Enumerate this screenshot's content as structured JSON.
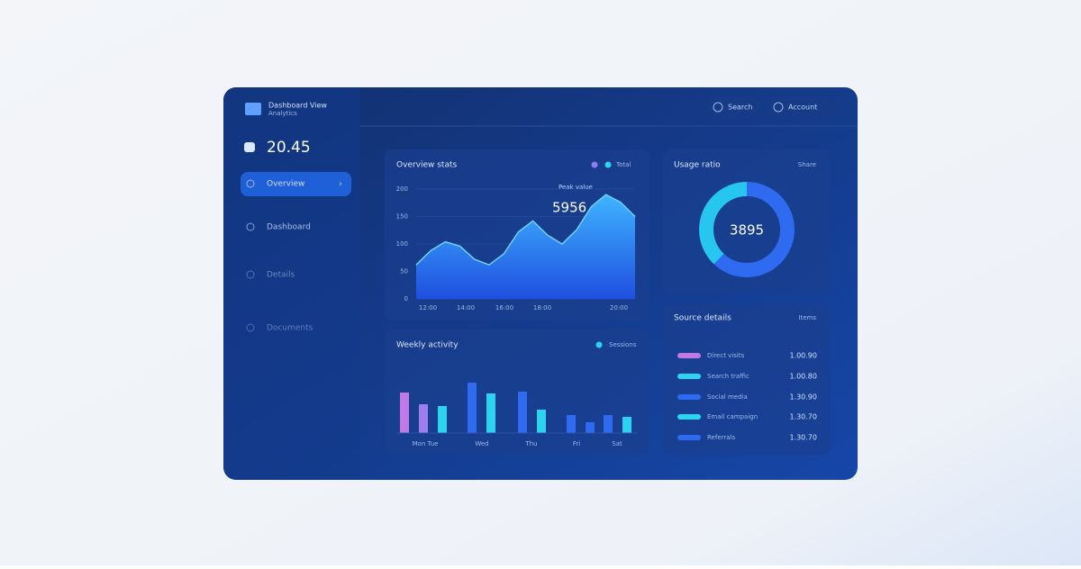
{
  "sidebar": {
    "brand": [
      "Dashboard View",
      "Analytics"
    ],
    "balance": "20.45",
    "nav": [
      "Overview",
      "Dashboard",
      "Details",
      "Documents"
    ]
  },
  "topbar": {
    "buttons": [
      "Search",
      "Account"
    ]
  },
  "area_chart": {
    "title": "Overview stats",
    "legend": "Total",
    "peak_label": "Peak value",
    "peak_value": "5956",
    "ylim": [
      0,
      200
    ],
    "yticks": [
      0,
      50,
      100,
      150,
      200
    ],
    "values": [
      62,
      88,
      104,
      96,
      72,
      62,
      82,
      122,
      142,
      116,
      100,
      126,
      168,
      190,
      176,
      150
    ],
    "xlabels": [
      "12:00",
      "14:00",
      "16:00",
      "18:00",
      "20:00"
    ]
  },
  "donut": {
    "title": "Usage ratio",
    "legend": "Share",
    "center": "3895",
    "values": [
      62,
      38
    ],
    "colors": [
      "#2f6bf0",
      "#27c6f0"
    ]
  },
  "bar_chart": {
    "title": "Weekly activity",
    "legend": "Sessions",
    "ylim": [
      0,
      60
    ],
    "values": [
      45,
      32,
      30,
      56,
      44,
      46,
      26,
      20,
      12,
      20,
      18
    ],
    "colors": [
      "#c07ae6",
      "#9d7df0",
      "#2ed3f0",
      "#2f6bf0",
      "#2ed3f0",
      "#2f6bf0",
      "#2ed3f0",
      "#2f6bf0",
      "#2f6bf0",
      "#2f6bf0",
      "#2ed3f0"
    ],
    "xlabels": [
      "Mon Tue",
      "Wed",
      "Thu",
      "Fri",
      "Sat"
    ]
  },
  "list": {
    "title": "Source details",
    "legend": "Items",
    "rows": [
      {
        "label": "Direct visits",
        "value": "1.00.90",
        "color": "#c07ae6"
      },
      {
        "label": "Search traffic",
        "value": "1.00.80",
        "color": "#2ed3f0"
      },
      {
        "label": "Social media",
        "value": "1.30.90",
        "color": "#2f6bf0"
      },
      {
        "label": "Email campaign",
        "value": "1.30.70",
        "color": "#2ed3f0"
      },
      {
        "label": "Referrals",
        "value": "1.30.70",
        "color": "#2f6bf0"
      }
    ]
  }
}
